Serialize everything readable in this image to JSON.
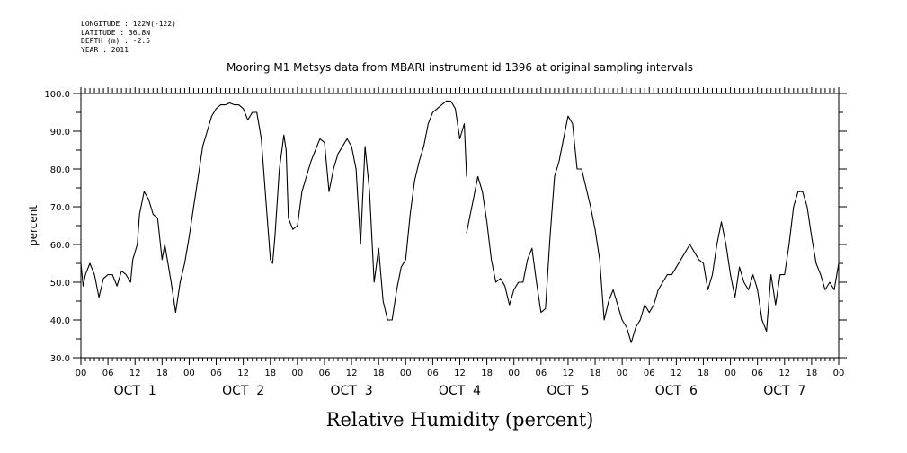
{
  "metadata": {
    "longitude": "LONGITUDE : 122W(-122)",
    "latitude": "LATITUDE : 36.8N",
    "depth": "DEPTH (m) : -2.5",
    "year": "YEAR : 2011"
  },
  "chart_data": {
    "type": "line",
    "title": "Mooring M1 Metsys data from MBARI instrument id 1396 at original sampling intervals",
    "xlabel": "Relative Humidity (percent)",
    "ylabel": "percent",
    "ylim": [
      30,
      100
    ],
    "yticks": [
      30,
      40,
      50,
      60,
      70,
      80,
      90,
      100
    ],
    "xlim_hours": [
      0,
      168
    ],
    "hour_tick_labels": [
      "00",
      "06",
      "12",
      "18",
      "00",
      "06",
      "12",
      "18",
      "00",
      "06",
      "12",
      "18",
      "00",
      "06",
      "12",
      "18",
      "00",
      "06",
      "12",
      "18",
      "00",
      "06",
      "12",
      "18",
      "00",
      "06",
      "12",
      "18",
      "00"
    ],
    "day_labels": [
      "OCT  1",
      "OCT  2",
      "OCT  3",
      "OCT  4",
      "OCT  5",
      "OCT  6",
      "OCT  7"
    ],
    "grid": false,
    "series": [
      {
        "segments": [
          [
            [
              0,
              55
            ],
            [
              0.5,
              49
            ],
            [
              1,
              52
            ],
            [
              2,
              55
            ],
            [
              3,
              52
            ],
            [
              4,
              46
            ],
            [
              5,
              51
            ],
            [
              6,
              52
            ],
            [
              7,
              52
            ],
            [
              8,
              49
            ],
            [
              9,
              53
            ],
            [
              10,
              52
            ],
            [
              11,
              50
            ],
            [
              11.5,
              56
            ],
            [
              12.5,
              60
            ],
            [
              13,
              68
            ],
            [
              14,
              74
            ],
            [
              15,
              72
            ],
            [
              16,
              68
            ],
            [
              17,
              67
            ],
            [
              18,
              56
            ],
            [
              18.6,
              60
            ],
            [
              20,
              50
            ],
            [
              21,
              42
            ],
            [
              22,
              50
            ],
            [
              23,
              55
            ],
            [
              24,
              62
            ],
            [
              25,
              70
            ],
            [
              26,
              78
            ],
            [
              27,
              86
            ],
            [
              28,
              90
            ],
            [
              29,
              94
            ],
            [
              30,
              96
            ],
            [
              31,
              97
            ],
            [
              32,
              97
            ],
            [
              33,
              97.5
            ],
            [
              34,
              97
            ],
            [
              35,
              97
            ],
            [
              36,
              96
            ],
            [
              37,
              93
            ],
            [
              38,
              95
            ],
            [
              39,
              95
            ],
            [
              40,
              88
            ],
            [
              41,
              72
            ],
            [
              42,
              56
            ],
            [
              42.5,
              55
            ],
            [
              43,
              62
            ],
            [
              44,
              80
            ],
            [
              45,
              89
            ],
            [
              45.5,
              85
            ],
            [
              46,
              67
            ],
            [
              47,
              64
            ],
            [
              48,
              65
            ],
            [
              49,
              74
            ],
            [
              50,
              78
            ],
            [
              51,
              82
            ],
            [
              52,
              85
            ],
            [
              53,
              88
            ],
            [
              54,
              87
            ],
            [
              55,
              74
            ],
            [
              56,
              80
            ],
            [
              57,
              84
            ],
            [
              58,
              86
            ],
            [
              59,
              88
            ],
            [
              60,
              86
            ],
            [
              61,
              80
            ],
            [
              62,
              60
            ],
            [
              63,
              86
            ],
            [
              64,
              74
            ],
            [
              65,
              50
            ],
            [
              66,
              59
            ],
            [
              67,
              45
            ],
            [
              68,
              40
            ],
            [
              69,
              40
            ],
            [
              70,
              48
            ],
            [
              71,
              54
            ],
            [
              72,
              56
            ],
            [
              73,
              68
            ],
            [
              74,
              77
            ],
            [
              75,
              82
            ],
            [
              76,
              86
            ],
            [
              77,
              92
            ],
            [
              78,
              95
            ],
            [
              79,
              96
            ],
            [
              80,
              97
            ],
            [
              81,
              98
            ],
            [
              82,
              98
            ],
            [
              83,
              96
            ],
            [
              84,
              88
            ],
            [
              85,
              92
            ],
            [
              85.5,
              78
            ]
          ],
          [
            [
              85.5,
              63
            ],
            [
              86,
              66
            ],
            [
              87,
              72
            ],
            [
              88,
              78
            ],
            [
              89,
              74
            ],
            [
              90,
              66
            ],
            [
              91,
              56
            ],
            [
              92,
              50
            ],
            [
              93,
              51
            ],
            [
              94,
              49
            ],
            [
              95,
              44
            ],
            [
              96,
              48
            ],
            [
              97,
              50
            ],
            [
              98,
              50
            ],
            [
              99,
              56
            ],
            [
              100,
              59
            ],
            [
              101,
              50
            ],
            [
              102,
              42
            ],
            [
              103,
              43
            ],
            [
              104,
              62
            ],
            [
              105,
              78
            ],
            [
              106,
              82
            ],
            [
              107,
              88
            ],
            [
              108,
              94
            ],
            [
              109,
              92
            ],
            [
              110,
              80
            ],
            [
              111,
              80
            ],
            [
              112,
              75
            ],
            [
              113,
              70
            ],
            [
              114,
              64
            ],
            [
              115,
              56
            ],
            [
              116,
              40
            ],
            [
              117,
              45
            ],
            [
              118,
              48
            ],
            [
              119,
              44
            ],
            [
              120,
              40
            ],
            [
              121,
              38
            ],
            [
              122,
              34
            ],
            [
              123,
              38
            ],
            [
              124,
              40
            ],
            [
              125,
              44
            ],
            [
              126,
              42
            ],
            [
              127,
              44
            ],
            [
              128,
              48
            ],
            [
              129,
              50
            ],
            [
              130,
              52
            ],
            [
              131,
              52
            ],
            [
              132,
              54
            ],
            [
              133,
              56
            ],
            [
              134,
              58
            ],
            [
              135,
              60
            ],
            [
              136,
              58
            ],
            [
              137,
              56
            ],
            [
              138,
              55
            ],
            [
              139,
              48
            ],
            [
              140,
              52
            ],
            [
              141,
              60
            ],
            [
              142,
              66
            ],
            [
              143,
              60
            ],
            [
              144,
              52
            ],
            [
              145,
              46
            ],
            [
              146,
              54
            ],
            [
              147,
              50
            ],
            [
              148,
              48
            ],
            [
              149,
              52
            ],
            [
              150,
              48
            ],
            [
              151,
              40
            ],
            [
              152,
              37
            ],
            [
              153,
              52
            ],
            [
              154,
              44
            ],
            [
              155,
              52
            ],
            [
              156,
              52
            ],
            [
              157,
              60
            ],
            [
              158,
              70
            ],
            [
              159,
              74
            ],
            [
              160,
              74
            ],
            [
              161,
              70
            ],
            [
              162,
              62
            ],
            [
              163,
              55
            ],
            [
              164,
              52
            ],
            [
              165,
              48
            ],
            [
              166,
              50
            ],
            [
              167,
              48
            ],
            [
              168,
              55
            ]
          ]
        ]
      }
    ]
  }
}
